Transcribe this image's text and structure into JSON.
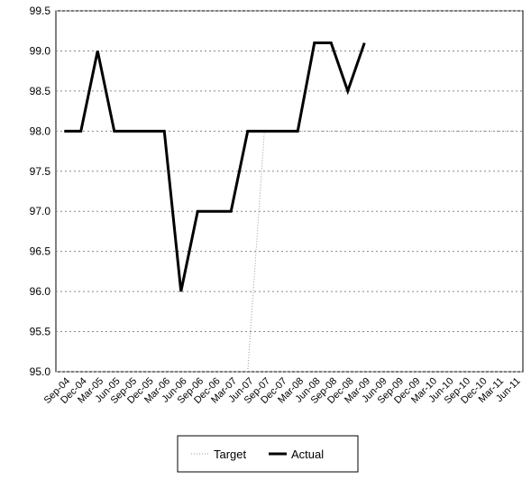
{
  "chart_data": {
    "type": "line",
    "categories": [
      "Sep-04",
      "Dec-04",
      "Mar-05",
      "Jun-05",
      "Sep-05",
      "Dec-05",
      "Mar-06",
      "Jun-06",
      "Sep-06",
      "Dec-06",
      "Mar-07",
      "Jun-07",
      "Sep-07",
      "Dec-07",
      "Mar-08",
      "Jun-08",
      "Sep-08",
      "Dec-08",
      "Mar-09",
      "Jun-09",
      "Sep-09",
      "Dec-09",
      "Mar-10",
      "Jun-10",
      "Sep-10",
      "Dec-10",
      "Mar-11",
      "Jun-11"
    ],
    "series": [
      {
        "name": "Target",
        "color": "#999999",
        "dashed": true,
        "values": [
          null,
          null,
          null,
          null,
          null,
          null,
          null,
          null,
          null,
          null,
          null,
          95,
          98,
          98,
          98,
          98,
          98,
          98,
          98,
          98,
          98,
          98,
          98,
          98,
          98,
          98,
          98,
          98
        ]
      },
      {
        "name": "Actual",
        "color": "#000000",
        "dashed": false,
        "values": [
          98,
          98,
          99,
          98,
          98,
          98,
          98,
          96,
          97,
          97,
          97,
          98,
          98,
          98,
          98,
          99.1,
          99.1,
          98.5,
          99.1,
          null,
          null,
          null,
          null,
          null,
          null,
          null,
          null,
          null
        ]
      }
    ],
    "ylim": [
      95,
      99.5
    ],
    "yticks": [
      {
        "value": 95,
        "label": "95.0"
      },
      95.5,
      {
        "value": 96,
        "label": "96.0"
      },
      96.5,
      {
        "value": 97,
        "label": "97.0"
      },
      97.5,
      {
        "value": 98,
        "label": "98.0"
      },
      98.5,
      {
        "value": 99,
        "label": "99.0"
      },
      99.5
    ],
    "grid": true
  }
}
